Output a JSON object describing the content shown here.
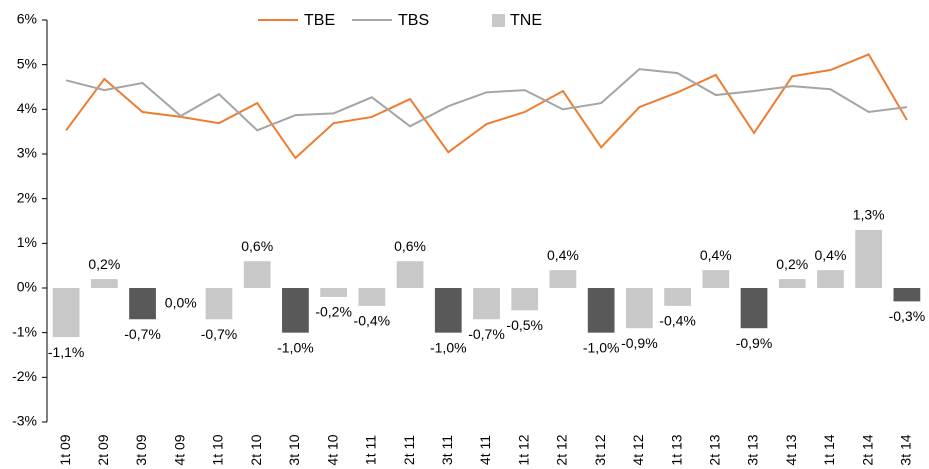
{
  "chart_data": {
    "type": "combo",
    "categories": [
      "1t 09",
      "2t 09",
      "3t 09",
      "4t 09",
      "1t 10",
      "2t 10",
      "3t 10",
      "4t 10",
      "1t 11",
      "2t 11",
      "3t 11",
      "4t 11",
      "1t 12",
      "2t 12",
      "3t 12",
      "4t 12",
      "1t 13",
      "2t 13",
      "3t 13",
      "4t 13",
      "1t 14",
      "2t 14",
      "3t 14"
    ],
    "series": [
      {
        "name": "TBE",
        "type": "line",
        "color": "#ed7d31",
        "values": [
          3.53,
          4.68,
          3.94,
          3.83,
          3.69,
          4.14,
          2.91,
          3.69,
          3.83,
          4.23,
          3.04,
          3.67,
          3.94,
          4.41,
          3.15,
          4.05,
          4.38,
          4.77,
          3.47,
          4.74,
          4.88,
          5.23,
          3.76
        ]
      },
      {
        "name": "TBS",
        "type": "line",
        "color": "#a5a5a5",
        "values": [
          4.65,
          4.43,
          4.59,
          3.85,
          4.34,
          3.53,
          3.87,
          3.91,
          4.27,
          3.62,
          4.07,
          4.38,
          4.43,
          4.0,
          4.14,
          4.9,
          4.81,
          4.32,
          4.41,
          4.52,
          4.45,
          3.94,
          4.05
        ]
      },
      {
        "name": "TNE",
        "type": "bar",
        "color": "#c8c8c8",
        "colors": [
          "#c8c8c8",
          "#c8c8c8",
          "#595959",
          "#c8c8c8",
          "#c8c8c8",
          "#c8c8c8",
          "#595959",
          "#c8c8c8",
          "#c8c8c8",
          "#c8c8c8",
          "#595959",
          "#c8c8c8",
          "#c8c8c8",
          "#c8c8c8",
          "#595959",
          "#c8c8c8",
          "#c8c8c8",
          "#c8c8c8",
          "#595959",
          "#c8c8c8",
          "#c8c8c8",
          "#c8c8c8",
          "#595959"
        ],
        "values": [
          -1.1,
          0.2,
          -0.7,
          0.0,
          -0.7,
          0.6,
          -1.0,
          -0.2,
          -0.4,
          0.6,
          -1.0,
          -0.7,
          -0.5,
          0.4,
          -1.0,
          -0.9,
          -0.4,
          0.4,
          -0.9,
          0.2,
          0.4,
          1.3,
          -0.3
        ],
        "value_labels": [
          "-1,1%",
          "0,2%",
          "-0,7%",
          "0,0%",
          "-0,7%",
          "0,6%",
          "-1,0%",
          "-0,2%",
          "-0,4%",
          "0,6%",
          "-1,0%",
          "-0,7%",
          "-0,5%",
          "0,4%",
          "-1,0%",
          "-0,9%",
          "-0,4%",
          "0,4%",
          "-0,9%",
          "0,2%",
          "0,4%",
          "1,3%",
          "-0,3%"
        ]
      }
    ],
    "ylim": [
      -3,
      6
    ],
    "yticks": [
      {
        "value": -3,
        "label": "-3%"
      },
      {
        "value": -2,
        "label": "-2%"
      },
      {
        "value": -1,
        "label": "-1%"
      },
      {
        "value": 0,
        "label": "0%"
      },
      {
        "value": 1,
        "label": "1%"
      },
      {
        "value": 2,
        "label": "2%"
      },
      {
        "value": 3,
        "label": "3%"
      },
      {
        "value": 4,
        "label": "4%"
      },
      {
        "value": 5,
        "label": "5%"
      },
      {
        "value": 6,
        "label": "6%"
      }
    ],
    "legend": "top"
  }
}
